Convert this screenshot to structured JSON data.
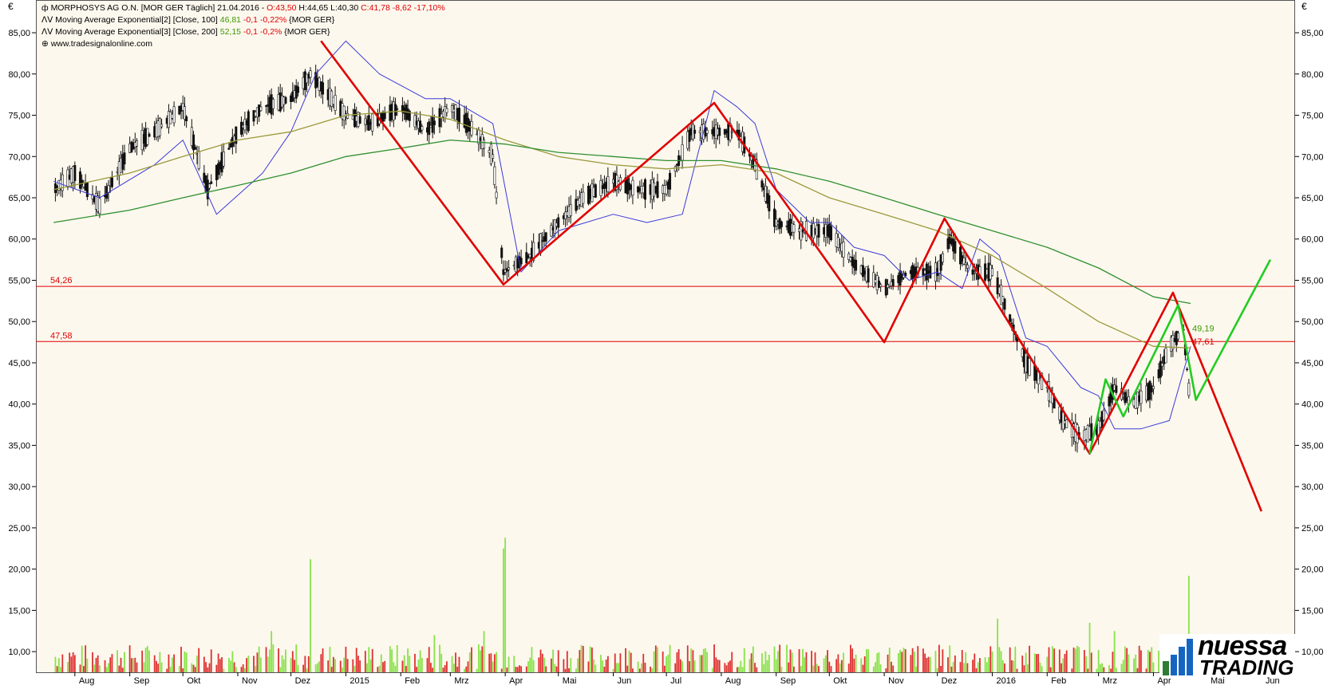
{
  "currency_left": "€",
  "currency_right": "€",
  "legend": {
    "title": "MORPHOSYS AG O.N. [MOR GER  Täglich] 21.04.2016 - ",
    "ohlc_open": "O:43,50",
    "ohlc_hl": " H:44,65 L:40,30 ",
    "ohlc_close": "C:41,78 -8,62 -17,10%",
    "ma100_prefix": "Moving Average Exponential[2] [Close, 100] ",
    "ma100_value": "46,81",
    "ma100_change": " -0,1 -0,22%",
    "ma100_suffix": " {MOR GER}",
    "ma200_prefix": "Moving Average Exponential[3] [Close, 200] ",
    "ma200_value": "52,15",
    "ma200_change": " -0,1 -0,2%",
    "ma200_suffix": " {MOR GER}",
    "website": "www.tradesignalonline.com"
  },
  "logo": {
    "line1": "nuessa",
    "line2": "TRADING"
  },
  "chart_data": {
    "type": "line",
    "y_ticks": [
      "85,00",
      "80,00",
      "75,00",
      "70,00",
      "65,00",
      "60,00",
      "55,00",
      "50,00",
      "45,00",
      "40,00",
      "35,00",
      "30,00",
      "25,00",
      "20,00",
      "15,00",
      "10,00"
    ],
    "y_tick_values": [
      85,
      80,
      75,
      70,
      65,
      60,
      55,
      50,
      45,
      40,
      35,
      30,
      25,
      20,
      15,
      10
    ],
    "ylim": [
      7.5,
      88
    ],
    "x_labels": [
      "Aug",
      "Sep",
      "Okt",
      "Nov",
      "Dez",
      "2015",
      "Feb",
      "Mrz",
      "Apr",
      "Mai",
      "Jun",
      "Jul",
      "Aug",
      "Sep",
      "Okt",
      "Nov",
      "Dez",
      "2016",
      "Feb",
      "Mrz",
      "Apr",
      "Mai",
      "Jun"
    ],
    "x_label_dates": [
      "2014-08-01",
      "2014-09-01",
      "2014-10-01",
      "2014-11-01",
      "2014-12-01",
      "2015-01-01",
      "2015-02-01",
      "2015-03-01",
      "2015-04-01",
      "2015-05-01",
      "2015-06-01",
      "2015-07-01",
      "2015-08-01",
      "2015-09-01",
      "2015-10-01",
      "2015-11-01",
      "2015-12-01",
      "2016-01-01",
      "2016-02-01",
      "2016-03-01",
      "2016-04-01",
      "2016-05-01",
      "2016-06-01"
    ],
    "horizontal_lines": [
      {
        "value": 54.26,
        "label": "54,26",
        "color": "#e00000"
      },
      {
        "value": 47.58,
        "label": "47,58",
        "color": "#e00000"
      }
    ],
    "value_labels": [
      {
        "label": "49,19",
        "value": 49.19,
        "color": "#3a9a00"
      },
      {
        "label": "47,61",
        "value": 47.61,
        "color": "#e00000"
      }
    ],
    "series": [
      {
        "color": "#333333",
        "points": [
          [
            "2014-07-20",
            66
          ],
          [
            "2014-08-01",
            68
          ],
          [
            "2014-08-15",
            64
          ],
          [
            "2014-09-01",
            71
          ],
          [
            "2014-09-15",
            73
          ],
          [
            "2014-10-01",
            76
          ],
          [
            "2014-10-15",
            66
          ],
          [
            "2014-11-01",
            73
          ],
          [
            "2014-11-15",
            76
          ],
          [
            "2014-12-01",
            77
          ],
          [
            "2014-12-12",
            80
          ],
          [
            "2015-01-01",
            75
          ],
          [
            "2015-01-15",
            74
          ],
          [
            "2015-02-01",
            76
          ],
          [
            "2015-02-15",
            73
          ],
          [
            "2015-03-01",
            76
          ],
          [
            "2015-03-15",
            73
          ],
          [
            "2015-03-25",
            70
          ],
          [
            "2015-03-31",
            56
          ],
          [
            "2015-04-15",
            58
          ],
          [
            "2015-05-01",
            62
          ],
          [
            "2015-05-15",
            65
          ],
          [
            "2015-06-01",
            67
          ],
          [
            "2015-06-15",
            66
          ],
          [
            "2015-07-01",
            66
          ],
          [
            "2015-07-15",
            73
          ],
          [
            "2015-07-28",
            73
          ],
          [
            "2015-08-10",
            73
          ],
          [
            "2015-08-20",
            69
          ],
          [
            "2015-09-01",
            62
          ],
          [
            "2015-09-15",
            61
          ],
          [
            "2015-10-01",
            61
          ],
          [
            "2015-10-15",
            57
          ],
          [
            "2015-11-01",
            54
          ],
          [
            "2015-11-15",
            56
          ],
          [
            "2015-12-01",
            56
          ],
          [
            "2015-12-08",
            60
          ],
          [
            "2015-12-20",
            56
          ],
          [
            "2016-01-01",
            56
          ],
          [
            "2016-01-10",
            51
          ],
          [
            "2016-01-20",
            45
          ],
          [
            "2016-02-01",
            42
          ],
          [
            "2016-02-10",
            38
          ],
          [
            "2016-02-20",
            36
          ],
          [
            "2016-03-01",
            37
          ],
          [
            "2016-03-10",
            42
          ],
          [
            "2016-03-20",
            40
          ],
          [
            "2016-04-01",
            42
          ],
          [
            "2016-04-10",
            47
          ],
          [
            "2016-04-18",
            49
          ],
          [
            "2016-04-21",
            41.8
          ]
        ]
      },
      {
        "color": "#3a3ad8",
        "points": [
          [
            "2014-07-20",
            67
          ],
          [
            "2014-08-15",
            65
          ],
          [
            "2014-09-15",
            69
          ],
          [
            "2014-10-01",
            72
          ],
          [
            "2014-10-20",
            63
          ],
          [
            "2014-11-15",
            68
          ],
          [
            "2014-12-01",
            73
          ],
          [
            "2014-12-15",
            80
          ],
          [
            "2015-01-01",
            84
          ],
          [
            "2015-01-20",
            80
          ],
          [
            "2015-02-15",
            77
          ],
          [
            "2015-03-01",
            77
          ],
          [
            "2015-03-25",
            74
          ],
          [
            "2015-04-10",
            56
          ],
          [
            "2015-05-01",
            61
          ],
          [
            "2015-06-01",
            63
          ],
          [
            "2015-06-20",
            62
          ],
          [
            "2015-07-10",
            63
          ],
          [
            "2015-07-28",
            78
          ],
          [
            "2015-08-10",
            76
          ],
          [
            "2015-08-20",
            74
          ],
          [
            "2015-09-01",
            66
          ],
          [
            "2015-09-20",
            62
          ],
          [
            "2015-10-01",
            62
          ],
          [
            "2015-10-15",
            59
          ],
          [
            "2015-11-01",
            58
          ],
          [
            "2015-11-15",
            55
          ],
          [
            "2015-12-01",
            56
          ],
          [
            "2015-12-15",
            54
          ],
          [
            "2015-12-25",
            60
          ],
          [
            "2016-01-05",
            58
          ],
          [
            "2016-01-20",
            48
          ],
          [
            "2016-02-01",
            47
          ],
          [
            "2016-02-20",
            42
          ],
          [
            "2016-03-01",
            41
          ],
          [
            "2016-03-10",
            37
          ],
          [
            "2016-03-25",
            37
          ],
          [
            "2016-04-10",
            38
          ],
          [
            "2016-04-22",
            47
          ]
        ]
      },
      {
        "color": "#9a9a3a",
        "points": [
          [
            "2014-07-20",
            66
          ],
          [
            "2014-09-01",
            68
          ],
          [
            "2014-10-01",
            70
          ],
          [
            "2014-11-01",
            72
          ],
          [
            "2014-12-01",
            73
          ],
          [
            "2015-01-01",
            75
          ],
          [
            "2015-02-01",
            75.5
          ],
          [
            "2015-03-01",
            74.5
          ],
          [
            "2015-04-01",
            72
          ],
          [
            "2015-05-01",
            70
          ],
          [
            "2015-06-01",
            69
          ],
          [
            "2015-07-01",
            68.5
          ],
          [
            "2015-08-01",
            69
          ],
          [
            "2015-09-01",
            68
          ],
          [
            "2015-10-01",
            65
          ],
          [
            "2015-11-01",
            63
          ],
          [
            "2015-12-01",
            61
          ],
          [
            "2016-01-01",
            58
          ],
          [
            "2016-02-01",
            54
          ],
          [
            "2016-03-01",
            50
          ],
          [
            "2016-04-01",
            47
          ],
          [
            "2016-04-22",
            46.8
          ]
        ]
      },
      {
        "color": "#2f8f2f",
        "points": [
          [
            "2014-07-20",
            62
          ],
          [
            "2014-09-01",
            63.5
          ],
          [
            "2014-10-01",
            65
          ],
          [
            "2014-11-01",
            66.5
          ],
          [
            "2014-12-01",
            68
          ],
          [
            "2015-01-01",
            70
          ],
          [
            "2015-02-01",
            71
          ],
          [
            "2015-03-01",
            72
          ],
          [
            "2015-04-01",
            71.5
          ],
          [
            "2015-05-01",
            70.5
          ],
          [
            "2015-06-01",
            70
          ],
          [
            "2015-07-01",
            69.5
          ],
          [
            "2015-08-01",
            69.5
          ],
          [
            "2015-09-01",
            68.5
          ],
          [
            "2015-10-01",
            67
          ],
          [
            "2015-11-01",
            65
          ],
          [
            "2015-12-01",
            63
          ],
          [
            "2016-01-01",
            61
          ],
          [
            "2016-02-01",
            59
          ],
          [
            "2016-03-01",
            56.5
          ],
          [
            "2016-04-01",
            53
          ],
          [
            "2016-04-22",
            52.2
          ]
        ]
      },
      {
        "color": "#e00000",
        "points": [
          [
            "2014-12-18",
            84
          ],
          [
            "2015-03-31",
            54.5
          ],
          [
            "2015-07-28",
            76.5
          ],
          [
            "2015-11-01",
            47.5
          ],
          [
            "2015-12-05",
            62.5
          ],
          [
            "2016-02-25",
            34
          ],
          [
            "2016-04-12",
            53.5
          ],
          [
            "2016-06-01",
            27
          ]
        ]
      },
      {
        "color": "#22cc22",
        "points": [
          [
            "2016-02-25",
            34
          ],
          [
            "2016-03-05",
            43
          ],
          [
            "2016-03-15",
            38.5
          ],
          [
            "2016-04-15",
            52
          ],
          [
            "2016-04-25",
            40.5
          ],
          [
            "2016-06-06",
            57.5
          ]
        ]
      }
    ],
    "volume_days": {
      "start": "2014-07-20",
      "end": "2016-04-21",
      "base": 7.5,
      "typical_max": 10.5,
      "spikes": [
        [
          "2014-12-12",
          21.2
        ],
        [
          "2015-03-31",
          22.5
        ],
        [
          "2015-04-01",
          23.8
        ],
        [
          "2015-03-20",
          12.5
        ],
        [
          "2015-11-01",
          14
        ],
        [
          "2016-01-04",
          14
        ],
        [
          "2016-02-25",
          13.5
        ],
        [
          "2016-04-21",
          19.2
        ],
        [
          "2014-09-20",
          12.5
        ],
        [
          "2014-11-20",
          12.5
        ],
        [
          "2015-02-20",
          12
        ],
        [
          "2016-03-10",
          12.5
        ]
      ]
    }
  }
}
